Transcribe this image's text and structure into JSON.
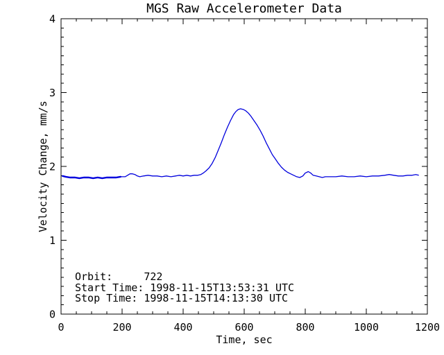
{
  "window": {
    "background": "#ffffff"
  },
  "title": "MGS Raw Accelerometer Data",
  "annotations": {
    "orbit_line": "Orbit:     722",
    "start_line": "Start Time: 1998-11-15T13:53:31 UTC",
    "stop_line": "Stop Time: 1998-11-15T14:13:30 UTC"
  },
  "colors": {
    "line": "#0000dd",
    "axis": "#000000",
    "background": "#ffffff",
    "text": "#000000"
  },
  "chart_data": {
    "type": "line",
    "title": "MGS Raw Accelerometer Data",
    "xlabel": "Time, sec",
    "ylabel": "Velocity Change, mm/s",
    "xlim": [
      0,
      1200
    ],
    "ylim": [
      0,
      4
    ],
    "xticks": [
      0,
      200,
      400,
      600,
      800,
      1000,
      1200
    ],
    "xtick_labels": [
      "0",
      "200",
      "400",
      "600",
      "800",
      "1000",
      "1200"
    ],
    "yticks": [
      0,
      1,
      2,
      3,
      4
    ],
    "ytick_labels": [
      "0",
      "1",
      "2",
      "3",
      "4"
    ],
    "x_minor_step": 50,
    "y_minor_step": 0.125,
    "grid": false,
    "legend": null,
    "series": [
      {
        "name": "velocity_change",
        "color": "#0000dd",
        "points": [
          [
            5,
            1.87
          ],
          [
            15,
            1.86
          ],
          [
            30,
            1.85
          ],
          [
            45,
            1.85
          ],
          [
            60,
            1.84
          ],
          [
            75,
            1.85
          ],
          [
            90,
            1.85
          ],
          [
            105,
            1.84
          ],
          [
            120,
            1.85
          ],
          [
            135,
            1.84
          ],
          [
            150,
            1.85
          ],
          [
            165,
            1.85
          ],
          [
            180,
            1.85
          ],
          [
            195,
            1.86
          ],
          [
            210,
            1.86
          ],
          [
            218,
            1.88
          ],
          [
            226,
            1.9
          ],
          [
            234,
            1.9
          ],
          [
            242,
            1.89
          ],
          [
            250,
            1.87
          ],
          [
            258,
            1.86
          ],
          [
            270,
            1.87
          ],
          [
            285,
            1.88
          ],
          [
            300,
            1.87
          ],
          [
            315,
            1.87
          ],
          [
            330,
            1.86
          ],
          [
            345,
            1.87
          ],
          [
            360,
            1.86
          ],
          [
            375,
            1.87
          ],
          [
            388,
            1.88
          ],
          [
            400,
            1.87
          ],
          [
            412,
            1.88
          ],
          [
            424,
            1.87
          ],
          [
            436,
            1.88
          ],
          [
            448,
            1.88
          ],
          [
            458,
            1.89
          ],
          [
            466,
            1.91
          ],
          [
            475,
            1.94
          ],
          [
            485,
            1.98
          ],
          [
            495,
            2.04
          ],
          [
            505,
            2.12
          ],
          [
            515,
            2.22
          ],
          [
            525,
            2.32
          ],
          [
            535,
            2.43
          ],
          [
            545,
            2.53
          ],
          [
            555,
            2.62
          ],
          [
            565,
            2.7
          ],
          [
            572,
            2.74
          ],
          [
            580,
            2.77
          ],
          [
            588,
            2.78
          ],
          [
            598,
            2.77
          ],
          [
            606,
            2.75
          ],
          [
            614,
            2.72
          ],
          [
            622,
            2.68
          ],
          [
            632,
            2.62
          ],
          [
            642,
            2.56
          ],
          [
            652,
            2.49
          ],
          [
            662,
            2.41
          ],
          [
            672,
            2.32
          ],
          [
            682,
            2.24
          ],
          [
            692,
            2.16
          ],
          [
            702,
            2.1
          ],
          [
            712,
            2.04
          ],
          [
            722,
            1.99
          ],
          [
            732,
            1.95
          ],
          [
            742,
            1.92
          ],
          [
            752,
            1.9
          ],
          [
            762,
            1.88
          ],
          [
            772,
            1.86
          ],
          [
            782,
            1.85
          ],
          [
            792,
            1.87
          ],
          [
            800,
            1.91
          ],
          [
            810,
            1.93
          ],
          [
            818,
            1.91
          ],
          [
            826,
            1.88
          ],
          [
            836,
            1.87
          ],
          [
            846,
            1.86
          ],
          [
            856,
            1.85
          ],
          [
            866,
            1.86
          ],
          [
            880,
            1.86
          ],
          [
            900,
            1.86
          ],
          [
            920,
            1.87
          ],
          [
            940,
            1.86
          ],
          [
            960,
            1.86
          ],
          [
            980,
            1.87
          ],
          [
            1000,
            1.86
          ],
          [
            1020,
            1.87
          ],
          [
            1040,
            1.87
          ],
          [
            1060,
            1.88
          ],
          [
            1075,
            1.89
          ],
          [
            1090,
            1.88
          ],
          [
            1105,
            1.87
          ],
          [
            1120,
            1.87
          ],
          [
            1135,
            1.88
          ],
          [
            1150,
            1.88
          ],
          [
            1162,
            1.89
          ],
          [
            1172,
            1.88
          ]
        ]
      }
    ]
  }
}
